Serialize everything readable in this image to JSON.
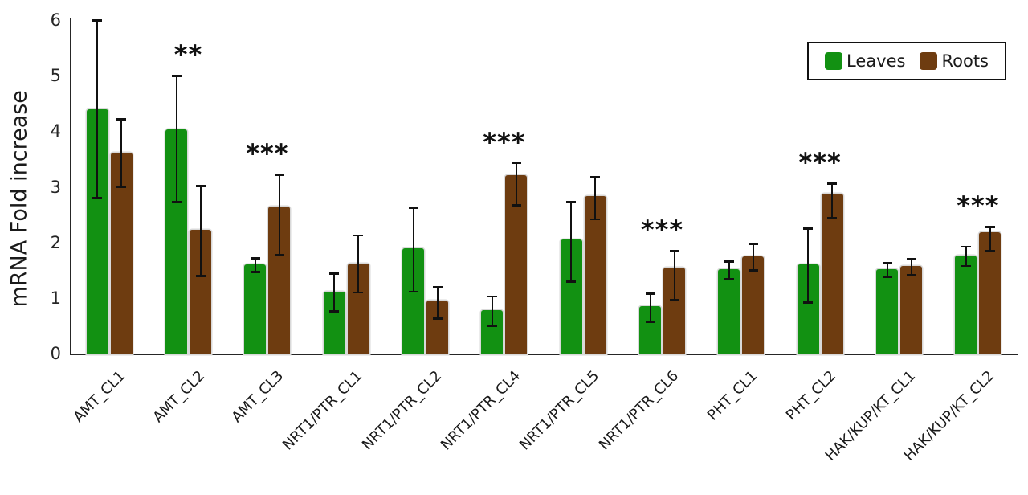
{
  "chart_data": {
    "type": "bar",
    "title": "",
    "ylabel": "mRNA Fold increase",
    "xlabel": "",
    "ylim": [
      0,
      6
    ],
    "yticks": [
      0,
      1,
      2,
      3,
      4,
      5,
      6
    ],
    "grid": false,
    "legend_position": "top-right",
    "categories": [
      "AMT_CL1",
      "AMT_CL2",
      "AMT_CL3",
      "NRT1/PTR_CL1",
      "NRT1/PTR_CL2",
      "NRT1/PTR_CL4",
      "NRT1/PTR_CL5",
      "NRT1/PTR_CL6",
      "PHT_CL1",
      "PHT_CL2",
      "HAK/KUP/KT_CL1",
      "HAK/KUP/KT_CL2"
    ],
    "series": [
      {
        "name": "Leaves",
        "color": "#129112",
        "values": [
          4.4,
          4.03,
          1.6,
          1.12,
          1.9,
          0.78,
          2.05,
          0.85,
          1.52,
          1.6,
          1.52,
          1.77
        ],
        "error_low": [
          2.8,
          2.73,
          1.47,
          0.76,
          1.12,
          0.5,
          1.3,
          0.57,
          1.35,
          0.92,
          1.38,
          1.58
        ],
        "error_high": [
          6.0,
          5.0,
          1.72,
          1.44,
          2.63,
          1.03,
          2.73,
          1.08,
          1.66,
          2.25,
          1.63,
          1.93
        ]
      },
      {
        "name": "Roots",
        "color": "#6e3c10",
        "values": [
          3.62,
          2.23,
          2.64,
          1.62,
          0.95,
          3.21,
          2.83,
          1.55,
          1.75,
          2.87,
          1.57,
          2.19
        ],
        "error_low": [
          3.0,
          1.4,
          1.78,
          1.1,
          0.63,
          2.67,
          2.42,
          0.97,
          1.5,
          2.45,
          1.42,
          1.85
        ],
        "error_high": [
          4.22,
          3.02,
          3.22,
          2.13,
          1.2,
          3.43,
          3.18,
          1.85,
          1.97,
          3.06,
          1.7,
          2.28
        ]
      }
    ],
    "significance": [
      {
        "category": "AMT_CL2",
        "index": 1,
        "label": "**"
      },
      {
        "category": "AMT_CL3",
        "index": 2,
        "label": "***"
      },
      {
        "category": "NRT1/PTR_CL4",
        "index": 5,
        "label": "***"
      },
      {
        "category": "NRT1/PTR_CL6",
        "index": 7,
        "label": "***"
      },
      {
        "category": "PHT_CL2",
        "index": 9,
        "label": "***"
      },
      {
        "category": "HAK/KUP/KT_CL2",
        "index": 11,
        "label": "***"
      }
    ],
    "error_bar_color": "#111111",
    "axis_color": "#262626"
  }
}
